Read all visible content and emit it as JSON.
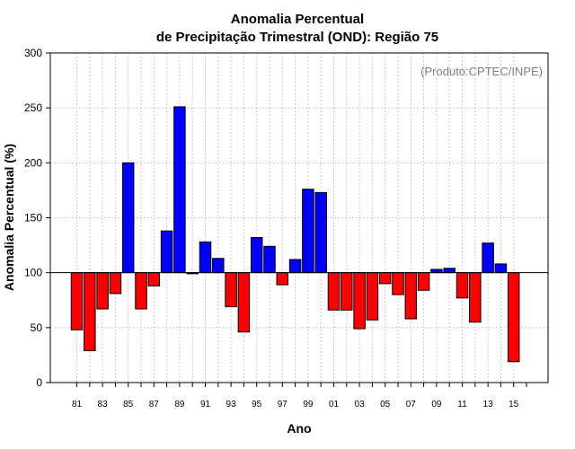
{
  "chart_data": {
    "type": "bar",
    "title": "Anomalia Percentual",
    "subtitle": "de Precipitação Trimestral (OND): Região 75",
    "xlabel": "Ano",
    "ylabel": "Anomalia Percentual (%)",
    "annotation": "(Produto:CPTEC/INPE)",
    "ylim": [
      0,
      300
    ],
    "yticks": [
      0,
      50,
      100,
      150,
      200,
      250,
      300
    ],
    "baseline": 100,
    "grid": true,
    "categories": [
      "81",
      "82",
      "83",
      "84",
      "85",
      "86",
      "87",
      "88",
      "89",
      "90",
      "91",
      "92",
      "93",
      "94",
      "95",
      "96",
      "97",
      "98",
      "99",
      "00",
      "01",
      "02",
      "03",
      "04",
      "05",
      "06",
      "07",
      "08",
      "09",
      "10",
      "11",
      "12",
      "13",
      "14",
      "15"
    ],
    "x_tick_labels": [
      "81",
      "83",
      "85",
      "87",
      "89",
      "91",
      "93",
      "95",
      "97",
      "99",
      "01",
      "03",
      "05",
      "07",
      "09",
      "11",
      "13",
      "15"
    ],
    "values": [
      48,
      29,
      67,
      81,
      200,
      67,
      88,
      138,
      251,
      99,
      128,
      113,
      69,
      46,
      132,
      124,
      89,
      112,
      176,
      173,
      66,
      66,
      49,
      57,
      90,
      80,
      58,
      84,
      103,
      104,
      77,
      55,
      127,
      108,
      19
    ],
    "colors": {
      "above": "#0000ff",
      "below": "#ff0000",
      "grid": "#c8c8c8"
    }
  }
}
